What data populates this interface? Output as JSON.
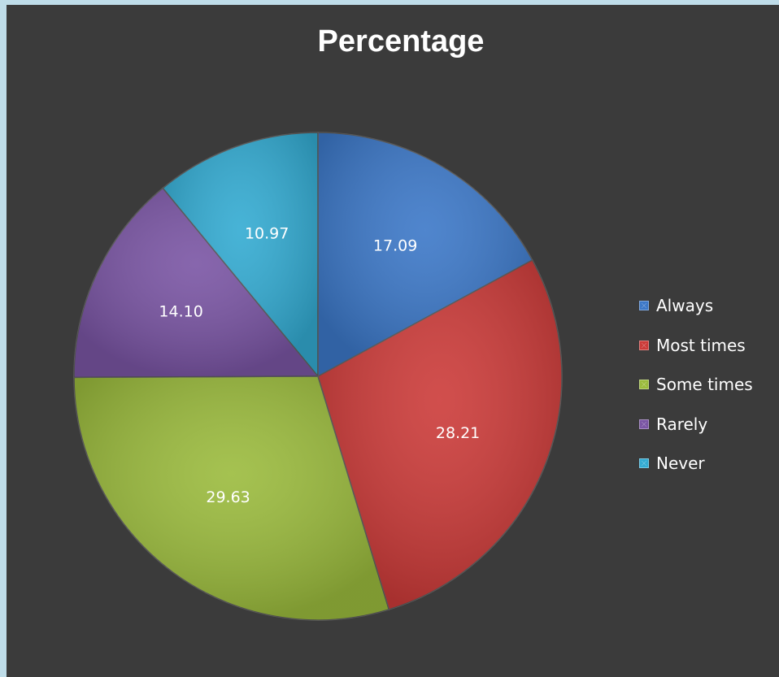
{
  "chart_data": {
    "type": "pie",
    "title": "Percentage",
    "categories": [
      "Always",
      "Most times",
      "Some times",
      "Rarely",
      "Never"
    ],
    "values": [
      17.09,
      28.21,
      29.63,
      14.1,
      10.97
    ],
    "value_labels": [
      "17.09",
      "28.21",
      "29.63",
      "14.10",
      "10.97"
    ],
    "colors": [
      "#3c78c8",
      "#cc3b39",
      "#9bbb3d",
      "#7a55a4",
      "#33abd2"
    ],
    "legend_position": "right",
    "start_angle": "12 o'clock, clockwise"
  }
}
